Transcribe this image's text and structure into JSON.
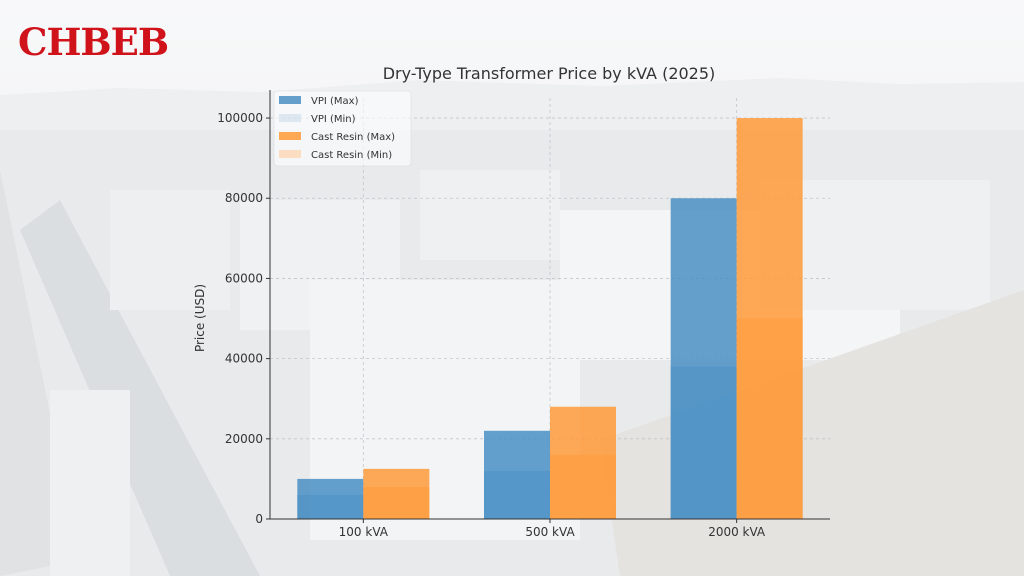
{
  "brand": {
    "logo_text": "CHBEB",
    "logo_color": "#d0121b"
  },
  "chart_data": {
    "type": "bar",
    "title": "Dry-Type Transformer Price by kVA (2025)",
    "xlabel": "",
    "ylabel": "Price (USD)",
    "categories": [
      "100 kVA",
      "500 kVA",
      "2000 kVA"
    ],
    "series": [
      {
        "name": "VPI (Max)",
        "values": [
          10000,
          22000,
          80000
        ],
        "color": "#4a8fc4"
      },
      {
        "name": "VPI (Min)",
        "values": [
          6000,
          12000,
          38000
        ],
        "color": "#a9c9e6"
      },
      {
        "name": "Cast Resin (Max)",
        "values": [
          12500,
          28000,
          100000
        ],
        "color": "#ff9a3a"
      },
      {
        "name": "Cast Resin (Min)",
        "values": [
          8000,
          16000,
          50000
        ],
        "color": "#ffc895"
      }
    ],
    "ylim": [
      0,
      105000
    ],
    "yticks": [
      0,
      20000,
      40000,
      60000,
      80000,
      100000
    ],
    "grid": true,
    "legend_position": "top-left"
  }
}
